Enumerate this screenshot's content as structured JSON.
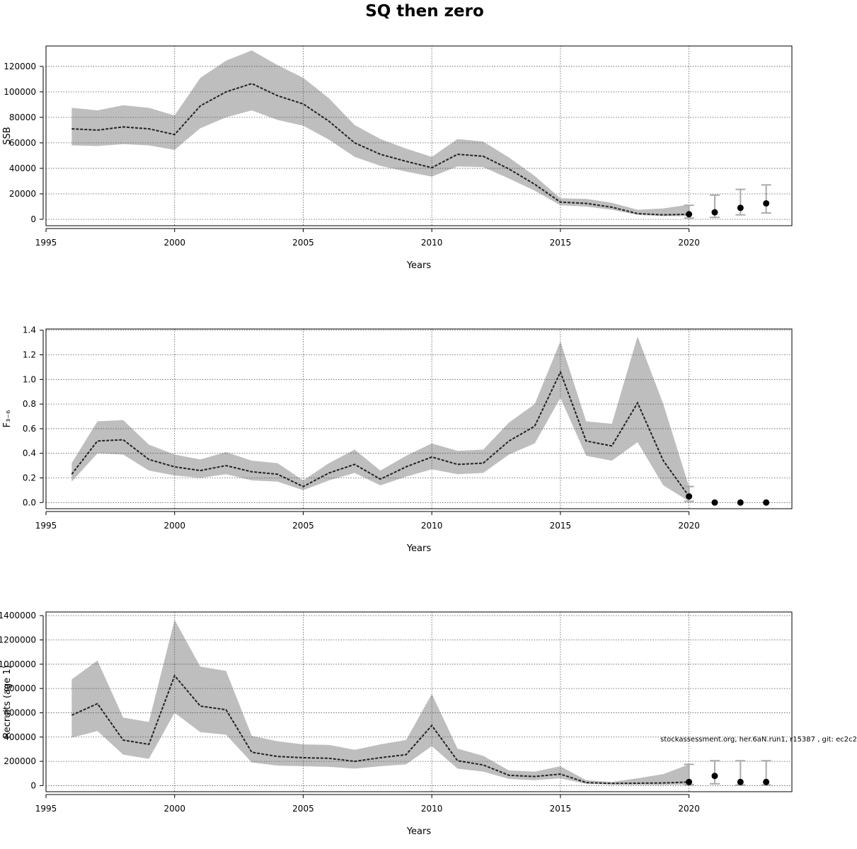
{
  "title": "SQ then zero",
  "footnote": "stockassessment.org, her.6aN.run1, r15387 , git: ec2c2",
  "colors": {
    "band": "#bebebe",
    "line": "#222222",
    "grid": "#555555",
    "errorbar": "#aaaaaa",
    "point": "#000000"
  },
  "chart_data": [
    {
      "type": "line",
      "title": "",
      "xlabel": "Years",
      "ylabel": "SSB",
      "xlim": [
        1995,
        2024
      ],
      "ylim": [
        -5000,
        136000
      ],
      "xticks": [
        1995,
        2000,
        2005,
        2010,
        2015,
        2020
      ],
      "yticks": [
        0,
        20000,
        40000,
        60000,
        80000,
        100000,
        120000
      ],
      "ytick_labels": [
        "0",
        "20000",
        "40000",
        "60000",
        "80000",
        "100000",
        "120000"
      ],
      "grid": true,
      "x": [
        1996,
        1997,
        1998,
        1999,
        2000,
        2001,
        2002,
        2003,
        2004,
        2005,
        2006,
        2007,
        2008,
        2009,
        2010,
        2011,
        2012,
        2013,
        2014,
        2015,
        2016,
        2017,
        2018,
        2019,
        2020
      ],
      "estimate": [
        71000,
        70000,
        72500,
        71000,
        66500,
        89000,
        100000,
        106500,
        97000,
        90500,
        77000,
        60000,
        51000,
        45500,
        40500,
        51000,
        49500,
        39500,
        27500,
        13500,
        12500,
        9500,
        4500,
        3500,
        4000
      ],
      "low": [
        58000,
        57500,
        59000,
        58000,
        54500,
        71500,
        80000,
        85500,
        78000,
        73500,
        62500,
        49000,
        42000,
        37500,
        33500,
        41500,
        41000,
        32000,
        22500,
        11000,
        10000,
        7500,
        3500,
        2500,
        2500
      ],
      "high": [
        87500,
        85500,
        89500,
        87500,
        81500,
        111000,
        124500,
        132500,
        121000,
        111000,
        95000,
        74000,
        63000,
        55500,
        49000,
        63000,
        61000,
        48500,
        34000,
        16500,
        16000,
        13000,
        7500,
        8500,
        11500
      ],
      "forecast": {
        "x": [
          2020,
          2021,
          2022,
          2023
        ],
        "median": [
          4000,
          5500,
          9000,
          12500
        ],
        "low": [
          1000,
          1500,
          3500,
          5000
        ],
        "high": [
          11000,
          19000,
          23500,
          27000
        ]
      }
    },
    {
      "type": "line",
      "title": "",
      "xlabel": "Years",
      "ylabel": "F₃₋₆",
      "xlim": [
        1995,
        2024
      ],
      "ylim": [
        -0.05,
        1.41
      ],
      "xticks": [
        1995,
        2000,
        2005,
        2010,
        2015,
        2020
      ],
      "yticks": [
        0.0,
        0.2,
        0.4,
        0.6,
        0.8,
        1.0,
        1.2,
        1.4
      ],
      "ytick_labels": [
        "0.0",
        "0.2",
        "0.4",
        "0.6",
        "0.8",
        "1.0",
        "1.2",
        "1.4"
      ],
      "grid": true,
      "x": [
        1996,
        1997,
        1998,
        1999,
        2000,
        2001,
        2002,
        2003,
        2004,
        2005,
        2006,
        2007,
        2008,
        2009,
        2010,
        2011,
        2012,
        2013,
        2014,
        2015,
        2016,
        2017,
        2018,
        2019,
        2020
      ],
      "estimate": [
        0.23,
        0.5,
        0.51,
        0.35,
        0.29,
        0.26,
        0.3,
        0.25,
        0.23,
        0.13,
        0.24,
        0.31,
        0.19,
        0.29,
        0.37,
        0.31,
        0.32,
        0.5,
        0.62,
        1.06,
        0.5,
        0.46,
        0.81,
        0.34,
        0.05
      ],
      "low": [
        0.17,
        0.4,
        0.39,
        0.26,
        0.22,
        0.2,
        0.23,
        0.18,
        0.17,
        0.1,
        0.18,
        0.24,
        0.14,
        0.21,
        0.27,
        0.23,
        0.24,
        0.39,
        0.48,
        0.85,
        0.38,
        0.34,
        0.49,
        0.14,
        0.01
      ],
      "high": [
        0.32,
        0.66,
        0.67,
        0.47,
        0.39,
        0.35,
        0.41,
        0.34,
        0.32,
        0.18,
        0.32,
        0.43,
        0.26,
        0.38,
        0.48,
        0.42,
        0.43,
        0.65,
        0.8,
        1.31,
        0.66,
        0.64,
        1.35,
        0.8,
        0.13
      ],
      "forecast": {
        "x": [
          2020,
          2021,
          2022,
          2023
        ],
        "median": [
          0.05,
          0.0,
          0.0,
          0.0
        ],
        "low": [
          0.01,
          0.0,
          0.0,
          0.0
        ],
        "high": [
          0.13,
          0.0,
          0.0,
          0.0
        ]
      }
    },
    {
      "type": "line",
      "title": "",
      "xlabel": "Years",
      "ylabel": "Recruits (age 1)",
      "xlim": [
        1995,
        2024
      ],
      "ylim": [
        -50000,
        1430000
      ],
      "xticks": [
        1995,
        2000,
        2005,
        2010,
        2015,
        2020
      ],
      "yticks": [
        0,
        200000,
        400000,
        600000,
        800000,
        1000000,
        1200000,
        1400000
      ],
      "ytick_labels": [
        "0",
        "200000",
        "400000",
        "600000",
        "800000",
        "1000000",
        "1200000",
        "1400000"
      ],
      "grid": true,
      "x": [
        1996,
        1997,
        1998,
        1999,
        2000,
        2001,
        2002,
        2003,
        2004,
        2005,
        2006,
        2007,
        2008,
        2009,
        2010,
        2011,
        2012,
        2013,
        2014,
        2015,
        2016,
        2017,
        2018,
        2019,
        2020
      ],
      "estimate": [
        580000,
        675000,
        375000,
        340000,
        905000,
        655000,
        625000,
        275000,
        240000,
        230000,
        225000,
        200000,
        230000,
        255000,
        495000,
        205000,
        170000,
        85000,
        75000,
        95000,
        25000,
        18000,
        20000,
        22000,
        30000
      ],
      "low": [
        395000,
        450000,
        255000,
        220000,
        600000,
        440000,
        420000,
        190000,
        165000,
        160000,
        155000,
        140000,
        160000,
        175000,
        325000,
        140000,
        115000,
        55000,
        45000,
        60000,
        15000,
        8000,
        5000,
        5000,
        8000
      ],
      "high": [
        875000,
        1030000,
        560000,
        525000,
        1365000,
        980000,
        945000,
        410000,
        365000,
        340000,
        335000,
        295000,
        340000,
        375000,
        755000,
        305000,
        245000,
        125000,
        115000,
        160000,
        45000,
        30000,
        60000,
        95000,
        175000
      ],
      "forecast": {
        "x": [
          2020,
          2021,
          2022,
          2023
        ],
        "median": [
          30000,
          80000,
          30000,
          30000
        ],
        "low": [
          8000,
          15000,
          5000,
          5000
        ],
        "high": [
          175000,
          205000,
          205000,
          205000
        ]
      }
    }
  ]
}
